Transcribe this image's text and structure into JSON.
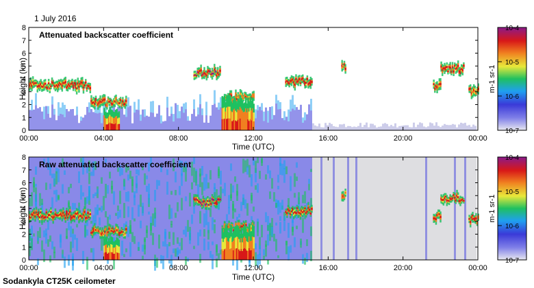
{
  "figure": {
    "date_label": "1 July 2016",
    "footer": "Sodankyla CT25K ceilometer"
  },
  "colormap": [
    "#e8e8f0",
    "#3a3ad8",
    "#1fa0f0",
    "#1fc060",
    "#e8e83a",
    "#f08020",
    "#d81818",
    "#8a1a8a"
  ],
  "chart_data": [
    {
      "type": "heatmap",
      "title": "Attenuated backscatter coefficient",
      "xlabel": "Time (UTC)",
      "ylabel": "Height (km)",
      "x_ticks": [
        "00:00",
        "04:00",
        "08:00",
        "12:00",
        "16:00",
        "20:00",
        "00:00"
      ],
      "xlim_hours": [
        0,
        24
      ],
      "y_ticks": [
        0,
        1,
        2,
        3,
        4,
        5,
        6,
        7,
        8
      ],
      "ylim_km": [
        0,
        8
      ],
      "colorbar": {
        "label": "m-1 sr-1",
        "ticks": [
          "10-7",
          "10-6",
          "10-5",
          "10-4"
        ],
        "log_range": [
          -7,
          -4
        ]
      },
      "cloud_layers": [
        {
          "start_h": 0.0,
          "end_h": 3.3,
          "height_km": 3.5,
          "intensity": 0.8
        },
        {
          "start_h": 3.3,
          "end_h": 5.2,
          "height_km": 2.2,
          "intensity": 0.75
        },
        {
          "start_h": 8.8,
          "end_h": 10.2,
          "height_km": 4.5,
          "intensity": 0.85
        },
        {
          "start_h": 10.3,
          "end_h": 12.0,
          "height_km": 2.5,
          "intensity": 0.7
        },
        {
          "start_h": 13.7,
          "end_h": 15.1,
          "height_km": 3.8,
          "intensity": 0.8
        },
        {
          "start_h": 16.7,
          "end_h": 16.9,
          "height_km": 5.0,
          "intensity": 0.7
        },
        {
          "start_h": 21.6,
          "end_h": 22.0,
          "height_km": 3.4,
          "intensity": 0.75
        },
        {
          "start_h": 22.0,
          "end_h": 23.2,
          "height_km": 4.8,
          "intensity": 0.8
        },
        {
          "start_h": 23.5,
          "end_h": 24.0,
          "height_km": 3.1,
          "intensity": 0.75
        }
      ],
      "precipitation": [
        {
          "start_h": 4.0,
          "end_h": 4.8,
          "top_km": 1.6
        },
        {
          "start_h": 10.3,
          "end_h": 12.0,
          "top_km": 2.4
        }
      ]
    },
    {
      "type": "heatmap",
      "title": "Raw attenuated backscatter coefficient",
      "xlabel": "Time (UTC)",
      "ylabel": "Height (km)",
      "x_ticks": [
        "00:00",
        "04:00",
        "08:00",
        "12:00",
        "16:00",
        "20:00",
        "00:00"
      ],
      "xlim_hours": [
        0,
        24
      ],
      "y_ticks": [
        0,
        1,
        2,
        3,
        4,
        5,
        6,
        7,
        8
      ],
      "ylim_km": [
        0,
        8
      ],
      "colorbar": {
        "label": "m-1 sr-1",
        "ticks": [
          "10-7",
          "10-6",
          "10-5",
          "10-4"
        ],
        "log_range": [
          -7,
          -4
        ]
      },
      "noise_regime": [
        {
          "start_h": 0.0,
          "end_h": 15.2,
          "background": "blue-green"
        },
        {
          "start_h": 15.2,
          "end_h": 24.0,
          "background": "grey"
        }
      ]
    }
  ]
}
